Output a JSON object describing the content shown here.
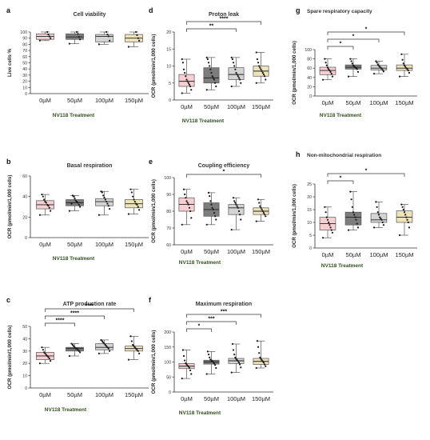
{
  "figure": {
    "name": "NV118 Seahorse panels"
  },
  "colors": {
    "box": [
      "#f6cfd3",
      "#7d7d7d",
      "#d4d4d4",
      "#efe3bc"
    ],
    "edge": "#555555",
    "point": "#1a1a1a",
    "axis": "#333333",
    "title": "#333333",
    "group_label": "#2f4f1f"
  },
  "chart_data": [
    {
      "panel": "a",
      "type": "box",
      "title": "Cell viability",
      "ylabel": "Live cells %",
      "categories": [
        "0µM",
        "50µM",
        "100µM",
        "150µM"
      ],
      "group_label": "NV118 Treatment",
      "ylim": [
        0,
        100
      ],
      "yticks": [
        0,
        10,
        20,
        30,
        40,
        50,
        60,
        70,
        80,
        90,
        100
      ],
      "series": [
        {
          "min": 86,
          "q1": 88,
          "median": 93,
          "q3": 97,
          "max": 100,
          "points": [
            86,
            90,
            93,
            96,
            100
          ]
        },
        {
          "min": 81,
          "q1": 88,
          "median": 92,
          "q3": 97,
          "max": 100,
          "points": [
            81,
            88,
            92,
            97,
            100
          ]
        },
        {
          "min": 80,
          "q1": 84,
          "median": 93,
          "q3": 96,
          "max": 100,
          "points": [
            80,
            86,
            93,
            96,
            100
          ]
        },
        {
          "min": 76,
          "q1": 84,
          "median": 90,
          "q3": 96,
          "max": 100,
          "points": [
            76,
            86,
            90,
            95,
            100
          ]
        }
      ],
      "significance": []
    },
    {
      "panel": "b",
      "type": "box",
      "title": "Basal respiration",
      "ylabel": "OCR (pmol/min/1,000 cells)",
      "categories": [
        "0µM",
        "50µM",
        "100µM",
        "150µM"
      ],
      "group_label": "NV118 Treatment",
      "ylim": [
        0,
        60
      ],
      "yticks": [
        0,
        20,
        40,
        60
      ],
      "series": [
        {
          "min": 22,
          "q1": 28,
          "median": 32,
          "q3": 36,
          "max": 42,
          "points": [
            22,
            26,
            29,
            31,
            32,
            34,
            35,
            37,
            40,
            42
          ]
        },
        {
          "min": 26,
          "q1": 31,
          "median": 34,
          "q3": 37,
          "max": 41,
          "points": [
            26,
            30,
            32,
            34,
            35,
            36,
            38,
            40,
            41,
            33
          ]
        },
        {
          "min": 22,
          "q1": 31,
          "median": 35,
          "q3": 38,
          "max": 45,
          "points": [
            22,
            28,
            31,
            33,
            35,
            37,
            39,
            41,
            44,
            45
          ]
        },
        {
          "min": 23,
          "q1": 29,
          "median": 33,
          "q3": 37,
          "max": 47,
          "points": [
            23,
            27,
            30,
            32,
            33,
            35,
            37,
            40,
            44,
            47
          ]
        }
      ],
      "significance": []
    },
    {
      "panel": "c",
      "type": "box",
      "title": "ATP production rate",
      "ylabel": "OCR (pmol/min/1,000 cells)",
      "categories": [
        "0µM",
        "50µM",
        "100µM",
        "150µM"
      ],
      "group_label": "NV118 Treatment",
      "ylim": [
        0,
        50
      ],
      "yticks": [
        0,
        10,
        20,
        30,
        40,
        50
      ],
      "series": [
        {
          "min": 20,
          "q1": 23,
          "median": 26,
          "q3": 29,
          "max": 33,
          "points": [
            20,
            22,
            24,
            25,
            26,
            27,
            28,
            29,
            31,
            33
          ]
        },
        {
          "min": 26,
          "q1": 30,
          "median": 32,
          "q3": 33,
          "max": 36,
          "points": [
            26,
            29,
            30,
            31,
            32,
            32,
            33,
            34,
            35,
            36
          ]
        },
        {
          "min": 28,
          "q1": 31,
          "median": 33,
          "q3": 36,
          "max": 39,
          "points": [
            28,
            30,
            32,
            33,
            34,
            35,
            36,
            37,
            38,
            39
          ]
        },
        {
          "min": 23,
          "q1": 30,
          "median": 32,
          "q3": 34,
          "max": 42,
          "points": [
            23,
            28,
            30,
            31,
            32,
            33,
            34,
            35,
            38,
            42
          ]
        }
      ],
      "significance": [
        {
          "from": 0,
          "to": 1,
          "label": "****"
        },
        {
          "from": 0,
          "to": 2,
          "label": "****"
        },
        {
          "from": 0,
          "to": 3,
          "label": "****"
        }
      ]
    },
    {
      "panel": "d",
      "type": "box",
      "title": "Proton leak",
      "ylabel": "OCR (pmol/min/1,000 cells)",
      "categories": [
        "0µM",
        "50µM",
        "100µM",
        "150µM"
      ],
      "group_label": "NV118 Treatment",
      "ylim": [
        0,
        20
      ],
      "yticks": [
        0,
        5,
        10,
        15,
        20
      ],
      "series": [
        {
          "min": 2,
          "q1": 4,
          "median": 5.5,
          "q3": 7.5,
          "max": 12,
          "points": [
            2,
            3,
            4,
            4.5,
            5,
            5.5,
            6,
            7,
            8,
            9,
            11,
            12
          ]
        },
        {
          "min": 3,
          "q1": 5,
          "median": 6.5,
          "q3": 9.5,
          "max": 12.5,
          "points": [
            3,
            4,
            5,
            6,
            6.5,
            7,
            8,
            9,
            10,
            11,
            12,
            12.5
          ]
        },
        {
          "min": 4,
          "q1": 6,
          "median": 7.5,
          "q3": 9.5,
          "max": 12.5,
          "points": [
            4,
            5,
            6,
            6.5,
            7,
            7.5,
            8,
            9,
            10,
            11,
            12,
            12.5
          ]
        },
        {
          "min": 5,
          "q1": 7,
          "median": 8.5,
          "q3": 10,
          "max": 14,
          "points": [
            5,
            6,
            7,
            7.5,
            8,
            8.5,
            9,
            9.5,
            10,
            11,
            12,
            14
          ]
        }
      ],
      "significance": [
        {
          "from": 0,
          "to": 2,
          "label": "**"
        },
        {
          "from": 0,
          "to": 3,
          "label": "****"
        }
      ]
    },
    {
      "panel": "e",
      "type": "box",
      "title": "Coupling efficiency",
      "ylabel": "OCR (pmol/min/1,000 cells)",
      "categories": [
        "0µM",
        "50µM",
        "100µM",
        "150µM"
      ],
      "group_label": "NV118 Treatment",
      "ylim": [
        60,
        100
      ],
      "yticks": [
        60,
        70,
        80,
        90,
        100
      ],
      "series": [
        {
          "min": 72,
          "q1": 80,
          "median": 84,
          "q3": 88,
          "max": 93,
          "points": [
            72,
            76,
            80,
            82,
            84,
            85,
            86,
            88,
            90,
            93
          ]
        },
        {
          "min": 72,
          "q1": 77,
          "median": 81,
          "q3": 85,
          "max": 91,
          "points": [
            72,
            75,
            77,
            79,
            81,
            82,
            84,
            86,
            89,
            91
          ]
        },
        {
          "min": 69,
          "q1": 78,
          "median": 82,
          "q3": 84,
          "max": 88,
          "points": [
            69,
            75,
            78,
            80,
            82,
            83,
            84,
            85,
            86,
            88
          ]
        },
        {
          "min": 74,
          "q1": 78,
          "median": 80,
          "q3": 82,
          "max": 87,
          "points": [
            74,
            77,
            78,
            79,
            80,
            81,
            82,
            83,
            85,
            87
          ]
        }
      ],
      "significance": [
        {
          "from": 0,
          "to": 3,
          "label": "*"
        }
      ]
    },
    {
      "panel": "f",
      "type": "box",
      "title": "Maximum respiration",
      "ylabel": "OCR (pmol/min/1,000 cells)",
      "categories": [
        "0µM",
        "50µM",
        "100µM",
        "150µM"
      ],
      "group_label": "NV118 Treatment",
      "ylim": [
        0,
        200
      ],
      "yticks": [
        0,
        50,
        100,
        150,
        200
      ],
      "series": [
        {
          "min": 45,
          "q1": 78,
          "median": 86,
          "q3": 95,
          "max": 140,
          "points": [
            45,
            60,
            72,
            80,
            85,
            88,
            92,
            96,
            105,
            120,
            140
          ]
        },
        {
          "min": 60,
          "q1": 93,
          "median": 100,
          "q3": 106,
          "max": 135,
          "points": [
            60,
            80,
            90,
            95,
            100,
            102,
            105,
            108,
            115,
            125,
            135
          ]
        },
        {
          "min": 65,
          "q1": 95,
          "median": 104,
          "q3": 112,
          "max": 160,
          "points": [
            65,
            82,
            92,
            98,
            103,
            106,
            110,
            115,
            125,
            140,
            160
          ]
        },
        {
          "min": 80,
          "q1": 92,
          "median": 102,
          "q3": 112,
          "max": 170,
          "points": [
            80,
            86,
            92,
            98,
            102,
            106,
            110,
            115,
            130,
            150,
            170
          ]
        }
      ],
      "significance": [
        {
          "from": 0,
          "to": 1,
          "label": "*"
        },
        {
          "from": 0,
          "to": 2,
          "label": "***"
        },
        {
          "from": 0,
          "to": 3,
          "label": "***"
        }
      ]
    },
    {
      "panel": "g",
      "type": "box",
      "title": "Spare respiratory capacity",
      "ylabel": "OCR (pmol/min/1,000 cells)",
      "categories": [
        "0µM",
        "50µM",
        "100µM",
        "150µM"
      ],
      "group_label": "NV118 Treatment",
      "ylim": [
        0,
        100
      ],
      "yticks": [
        0,
        20,
        40,
        60,
        80,
        100
      ],
      "series": [
        {
          "min": 35,
          "q1": 46,
          "median": 55,
          "q3": 62,
          "max": 80,
          "points": [
            35,
            42,
            48,
            52,
            55,
            58,
            61,
            66,
            72,
            80
          ]
        },
        {
          "min": 42,
          "q1": 58,
          "median": 62,
          "q3": 67,
          "max": 80,
          "points": [
            42,
            52,
            58,
            60,
            62,
            64,
            66,
            70,
            75,
            80
          ]
        },
        {
          "min": 48,
          "q1": 56,
          "median": 60,
          "q3": 66,
          "max": 75,
          "points": [
            48,
            53,
            56,
            59,
            61,
            63,
            65,
            68,
            72,
            75
          ]
        },
        {
          "min": 42,
          "q1": 55,
          "median": 60,
          "q3": 67,
          "max": 90,
          "points": [
            42,
            50,
            55,
            58,
            60,
            63,
            66,
            70,
            78,
            90
          ]
        }
      ],
      "significance": [
        {
          "from": 0,
          "to": 1,
          "label": "*"
        },
        {
          "from": 0,
          "to": 2,
          "label": "*"
        },
        {
          "from": 0,
          "to": 3,
          "label": "*"
        }
      ]
    },
    {
      "panel": "h",
      "type": "box",
      "title": "Non-mitochondrial respiration",
      "ylabel": "OCR (pmol/min/1,000 cells)",
      "categories": [
        "0µM",
        "50µM",
        "100µM",
        "150µM"
      ],
      "group_label": "NV118 Treatment",
      "ylim": [
        0,
        25
      ],
      "yticks": [
        0,
        5,
        10,
        15,
        20,
        25
      ],
      "series": [
        {
          "min": 4,
          "q1": 7,
          "median": 9.5,
          "q3": 12,
          "max": 16,
          "points": [
            4,
            6,
            7,
            8,
            9,
            10,
            11,
            12,
            14,
            16
          ]
        },
        {
          "min": 7,
          "q1": 9,
          "median": 12,
          "q3": 14,
          "max": 22,
          "points": [
            7,
            8,
            9.5,
            11,
            12,
            13,
            14,
            16,
            19,
            22
          ]
        },
        {
          "min": 8,
          "q1": 10,
          "median": 11,
          "q3": 13.5,
          "max": 18,
          "points": [
            8,
            9,
            10,
            11,
            11.5,
            12,
            13,
            14,
            16,
            18
          ]
        },
        {
          "min": 5,
          "q1": 10,
          "median": 12,
          "q3": 14.5,
          "max": 17,
          "points": [
            5,
            8,
            10,
            11,
            12,
            13,
            14,
            15,
            16,
            17
          ]
        }
      ],
      "significance": [
        {
          "from": 0,
          "to": 1,
          "label": "*"
        },
        {
          "from": 0,
          "to": 3,
          "label": "*"
        }
      ]
    }
  ]
}
